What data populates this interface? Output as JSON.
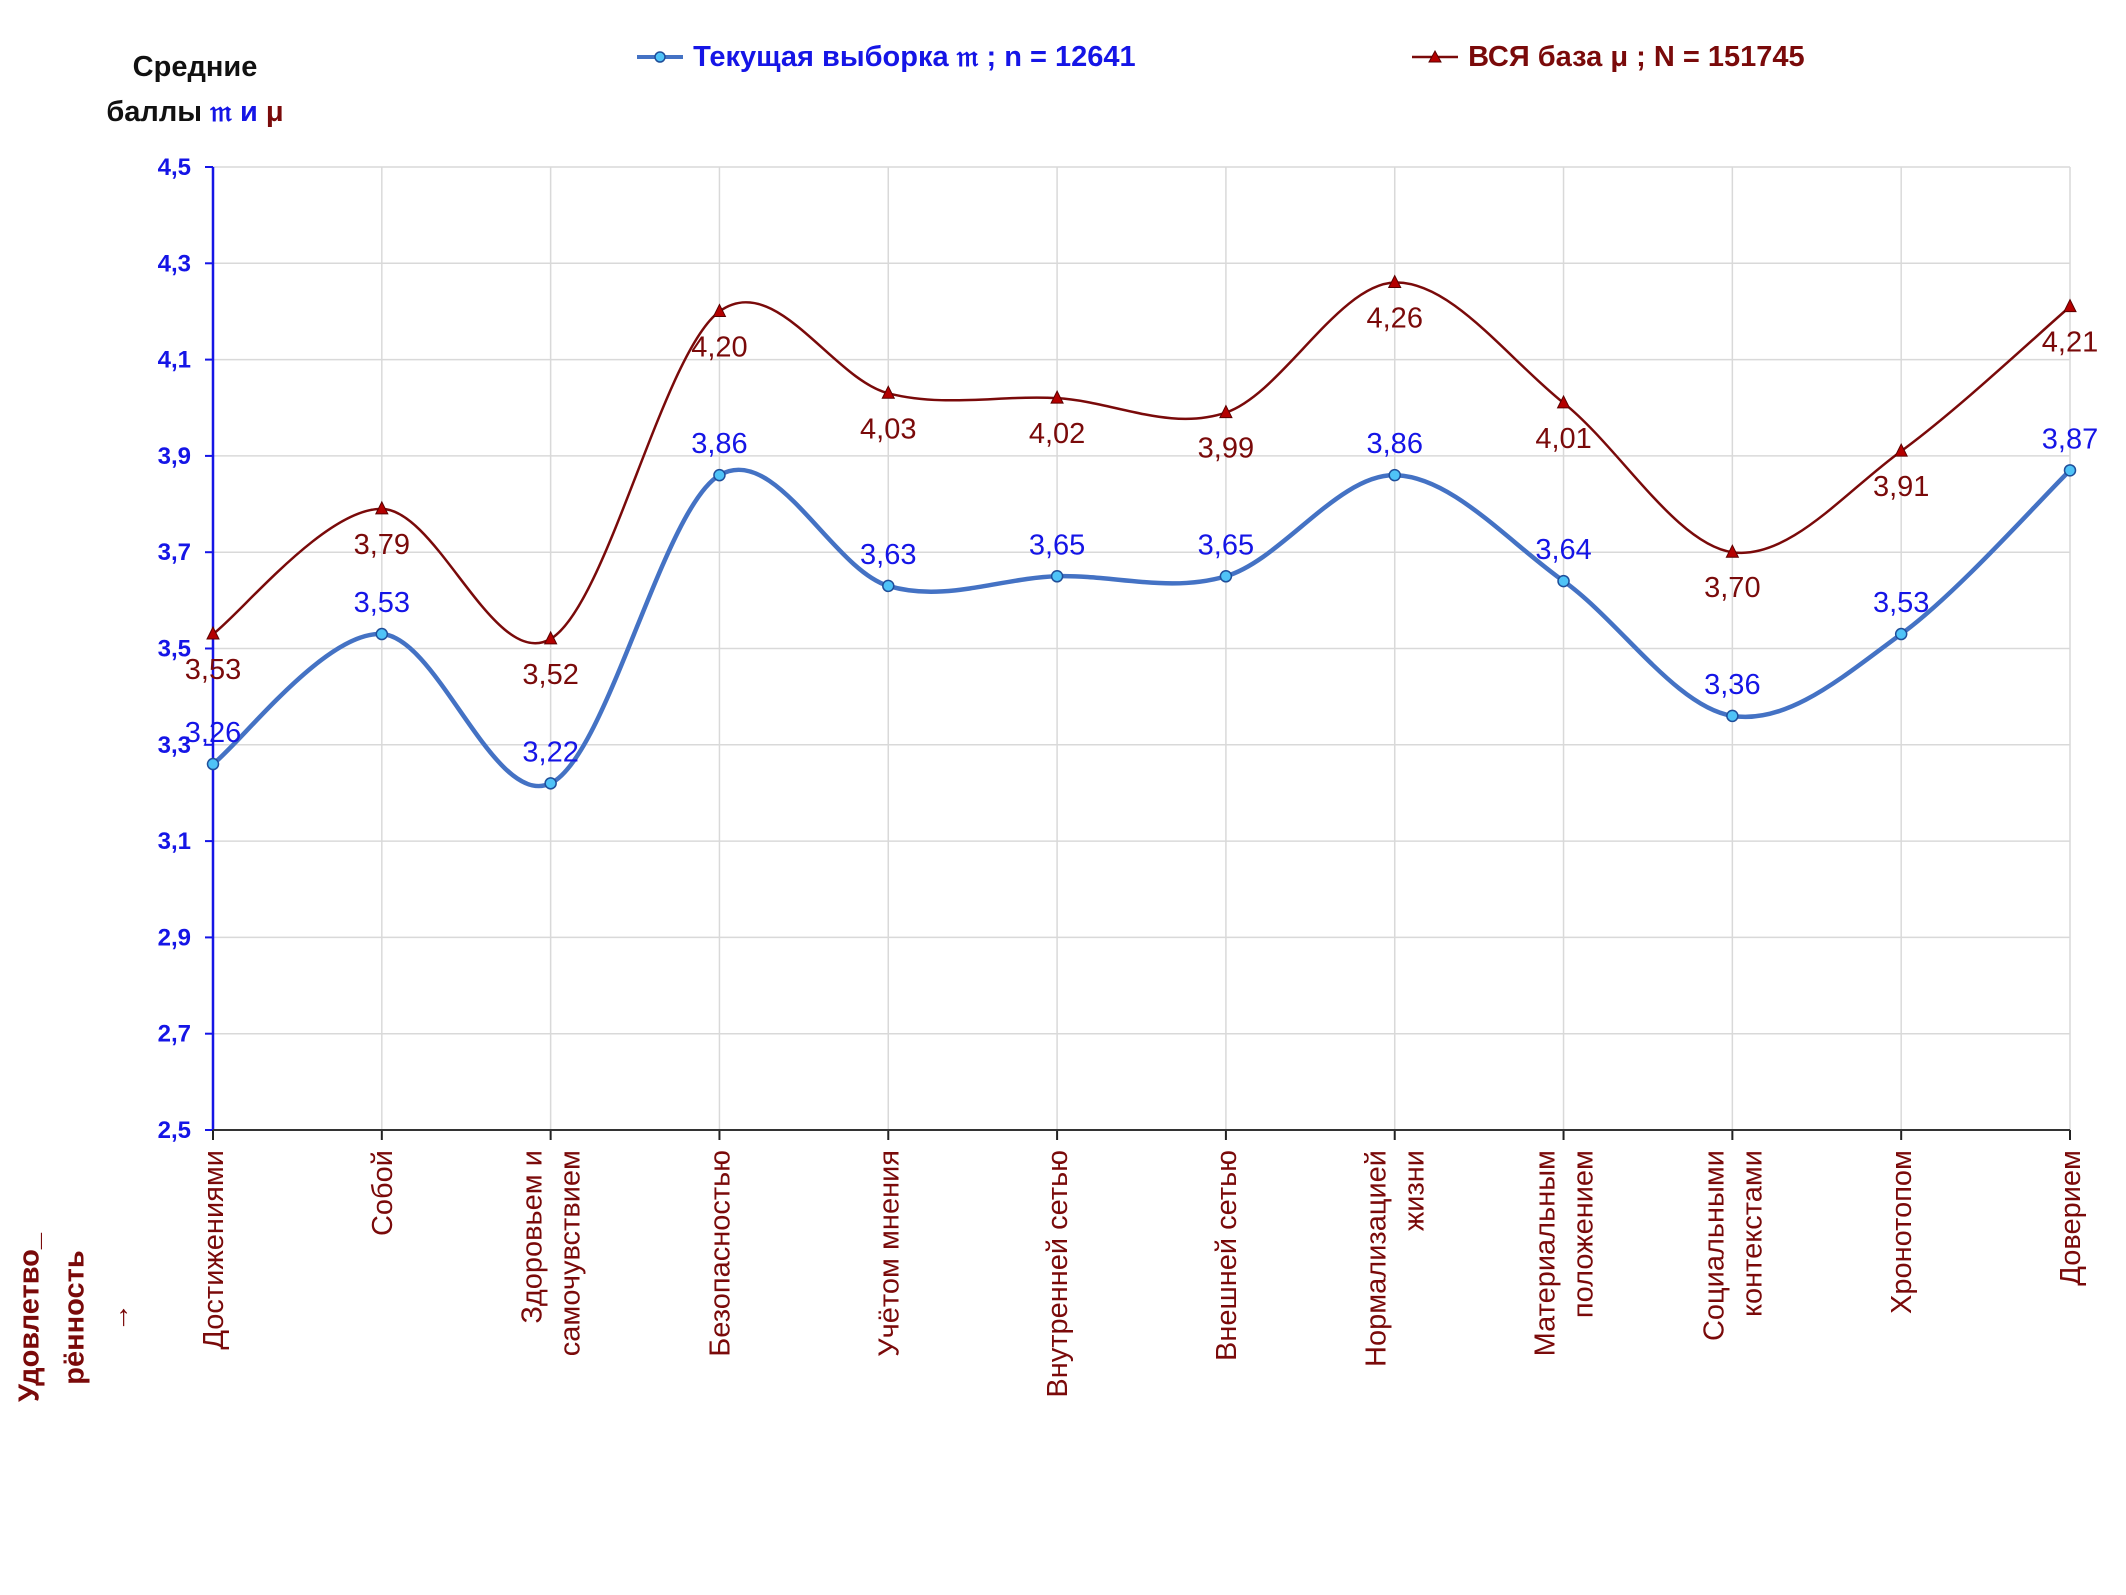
{
  "y_title": {
    "line1": "Средние",
    "line2_prefix": "баллы",
    "sym_current": "𝔪",
    "conj": "и",
    "sym_all": "μ"
  },
  "legend": {
    "current": "Текущая выборка 𝔪 ; n = 12641",
    "all": "ВСЯ база μ ; N = 151745"
  },
  "footer": {
    "line1": "Удовлетво_",
    "line2": "рённость",
    "arrow": "→"
  },
  "colors": {
    "current_line": "#4472c4",
    "current_marker_fill": "#4fc3f7",
    "current_label": "#1515e6",
    "all_line": "#7a0a0a",
    "all_label": "#7a0a0a",
    "axis_y_label": "#1515e6",
    "grid": "#d9d9d9"
  },
  "chart_data": {
    "type": "line",
    "categories": [
      [
        "Достижениями"
      ],
      [
        "Собой"
      ],
      [
        "Здоровьем и",
        "самочувствием"
      ],
      [
        "Безопасностью"
      ],
      [
        "Учётом мнения"
      ],
      [
        "Внутренней сетью"
      ],
      [
        "Внешней сетью"
      ],
      [
        "Нормализацией",
        "жизни"
      ],
      [
        "Материальным",
        "положением"
      ],
      [
        "Социальными",
        "контекстами"
      ],
      [
        "Хронотопом"
      ],
      [
        "Доверием"
      ]
    ],
    "series": [
      {
        "key": "current",
        "name": "Текущая выборка 𝔪 ; n = 12641",
        "values": [
          3.26,
          3.53,
          3.22,
          3.86,
          3.63,
          3.65,
          3.65,
          3.86,
          3.64,
          3.36,
          3.53,
          3.87
        ],
        "labels": [
          "3,26",
          "3,53",
          "3,22",
          "3,86",
          "3,63",
          "3,65",
          "3,65",
          "3,86",
          "3,64",
          "3,36",
          "3,53",
          "3,87"
        ]
      },
      {
        "key": "all",
        "name": "ВСЯ база μ ; N = 151745",
        "values": [
          3.53,
          3.79,
          3.52,
          4.2,
          4.03,
          4.02,
          3.99,
          4.26,
          4.01,
          3.7,
          3.91,
          4.21
        ],
        "labels": [
          "3,53",
          "3,79",
          "3,52",
          "4,20",
          "4,03",
          "4,02",
          "3,99",
          "4,26",
          "4,01",
          "3,70",
          "3,91",
          "4,21"
        ]
      }
    ],
    "ylim": [
      2.5,
      4.5
    ],
    "yticks": [
      "2,5",
      "2,7",
      "2,9",
      "3,1",
      "3,3",
      "3,5",
      "3,7",
      "3,9",
      "4,1",
      "4,3",
      "4,5"
    ],
    "grid": true,
    "legend_position": "top"
  }
}
